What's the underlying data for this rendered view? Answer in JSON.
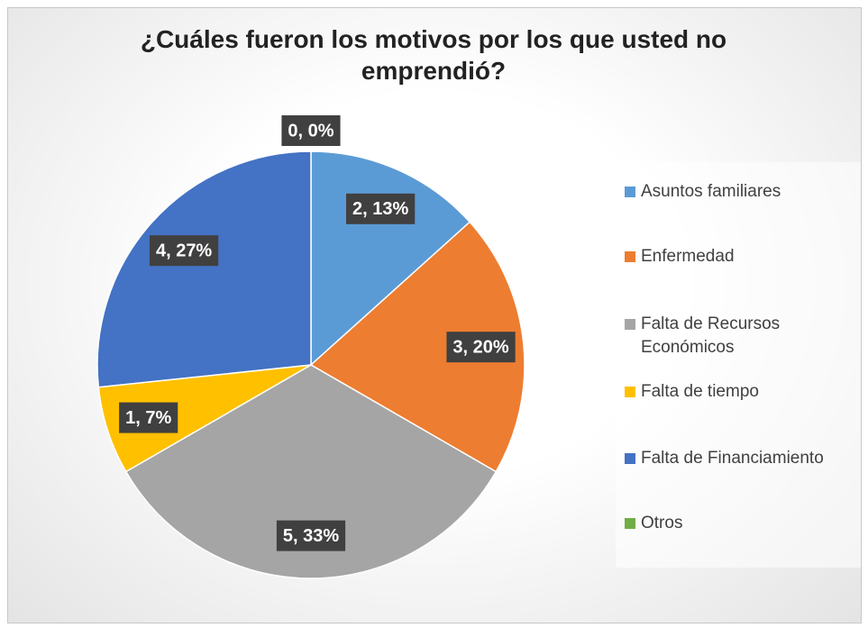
{
  "chart_data": {
    "type": "pie",
    "title": "¿Cuáles fueron los motivos por los que usted no emprendió?",
    "categories": [
      "Asuntos familiares",
      "Enfermedad",
      "Falta de Recursos Económicos",
      "Falta de tiempo",
      "Falta de Financiamiento",
      "Otros"
    ],
    "values": [
      2,
      3,
      5,
      1,
      4,
      0
    ],
    "value_labels": [
      "2, 13%",
      "3, 20%",
      "5, 33%",
      "1, 7%",
      "4, 27%",
      "0, 0%"
    ],
    "colors": [
      "#5b9bd5",
      "#ed7d31",
      "#a5a5a5",
      "#ffc000",
      "#4472c4",
      "#70ad47"
    ],
    "legend": "right"
  }
}
